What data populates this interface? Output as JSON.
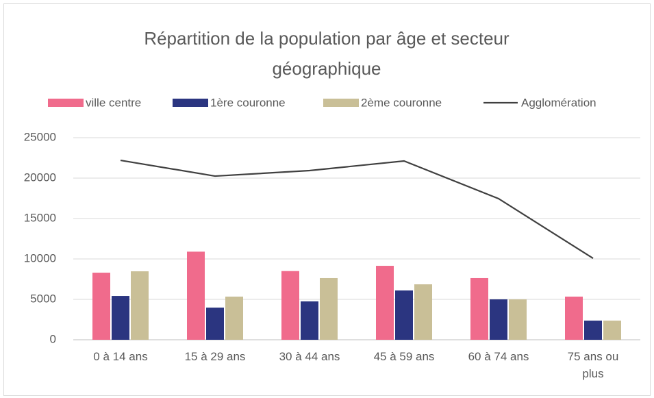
{
  "chart_data": {
    "type": "bar",
    "title": "Répartition de la population par âge et secteur géographique",
    "categories": [
      "0 à 14 ans",
      "15 à 29 ans",
      "30 à 44 ans",
      "45 à 59 ans",
      "60 à 74 ans",
      "75 ans ou plus"
    ],
    "series": [
      {
        "name": "ville centre",
        "color": "#f06b8c",
        "values": [
          8300,
          10900,
          8500,
          9150,
          7630,
          5340
        ]
      },
      {
        "name": "1ère couronne",
        "color": "#2b3580",
        "values": [
          5420,
          3980,
          4750,
          6100,
          5000,
          2370
        ]
      },
      {
        "name": "2ème couronne",
        "color": "#c9bf97",
        "values": [
          8470,
          5340,
          7630,
          6860,
          5000,
          2370
        ]
      },
      {
        "name": "Agglomération",
        "color": "#404040",
        "type": "line",
        "values": [
          22200,
          20250,
          20930,
          22120,
          17460,
          10080
        ]
      }
    ],
    "ylim": [
      0,
      25000
    ],
    "yticks": [
      0,
      5000,
      10000,
      15000,
      20000,
      25000
    ],
    "grid": true,
    "legend": "top"
  }
}
